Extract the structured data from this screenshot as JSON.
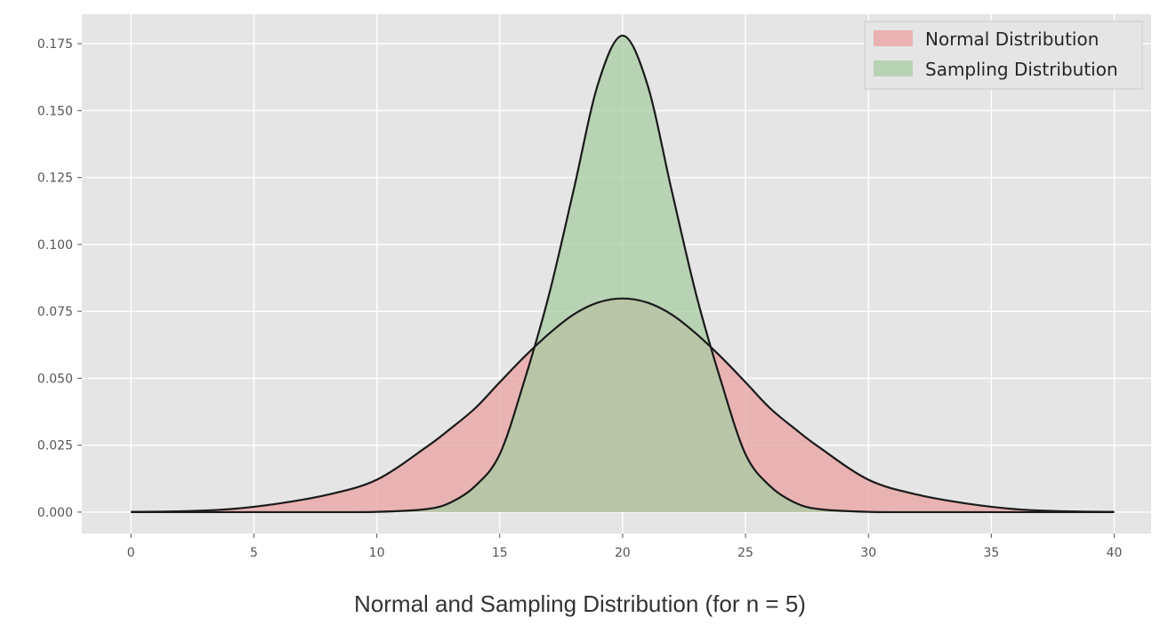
{
  "caption": "Normal and Sampling Distribution (for n = 5)",
  "chart_data": {
    "type": "area",
    "xlim": [
      -2,
      41.5
    ],
    "ylim": [
      -0.008,
      0.186
    ],
    "x_ticks": [
      0,
      5,
      10,
      15,
      20,
      25,
      30,
      35,
      40
    ],
    "y_ticks": [
      0.0,
      0.025,
      0.05,
      0.075,
      0.1,
      0.125,
      0.15,
      0.175
    ],
    "y_tick_labels": [
      "0.000",
      "0.025",
      "0.050",
      "0.075",
      "0.100",
      "0.125",
      "0.150",
      "0.175"
    ],
    "x": [
      0,
      2,
      4,
      6,
      8,
      10,
      12,
      13,
      14,
      15,
      16,
      17,
      18,
      19,
      20,
      21,
      22,
      23,
      24,
      25,
      26,
      27,
      28,
      30,
      32,
      34,
      36,
      38,
      40
    ],
    "series": [
      {
        "name": "Normal Distribution",
        "color": "#e8a2a0",
        "values": [
          0.0001,
          0.0003,
          0.0011,
          0.0032,
          0.0065,
          0.0121,
          0.0242,
          0.0312,
          0.0388,
          0.0485,
          0.058,
          0.0666,
          0.0738,
          0.0783,
          0.0798,
          0.0783,
          0.0738,
          0.0666,
          0.058,
          0.0485,
          0.0388,
          0.0312,
          0.0242,
          0.0121,
          0.0065,
          0.0032,
          0.0011,
          0.0003,
          0.0001
        ]
      },
      {
        "name": "Sampling Distribution",
        "color": "#a8cca3",
        "values": [
          0,
          0,
          0,
          0,
          0.0,
          0.0001,
          0.0011,
          0.0036,
          0.0097,
          0.0216,
          0.049,
          0.081,
          0.12,
          0.16,
          0.178,
          0.16,
          0.12,
          0.081,
          0.049,
          0.0216,
          0.0097,
          0.0036,
          0.0011,
          0.0001,
          0,
          0,
          0,
          0,
          0
        ]
      }
    ],
    "grid": true,
    "legend_position": "top-right"
  }
}
